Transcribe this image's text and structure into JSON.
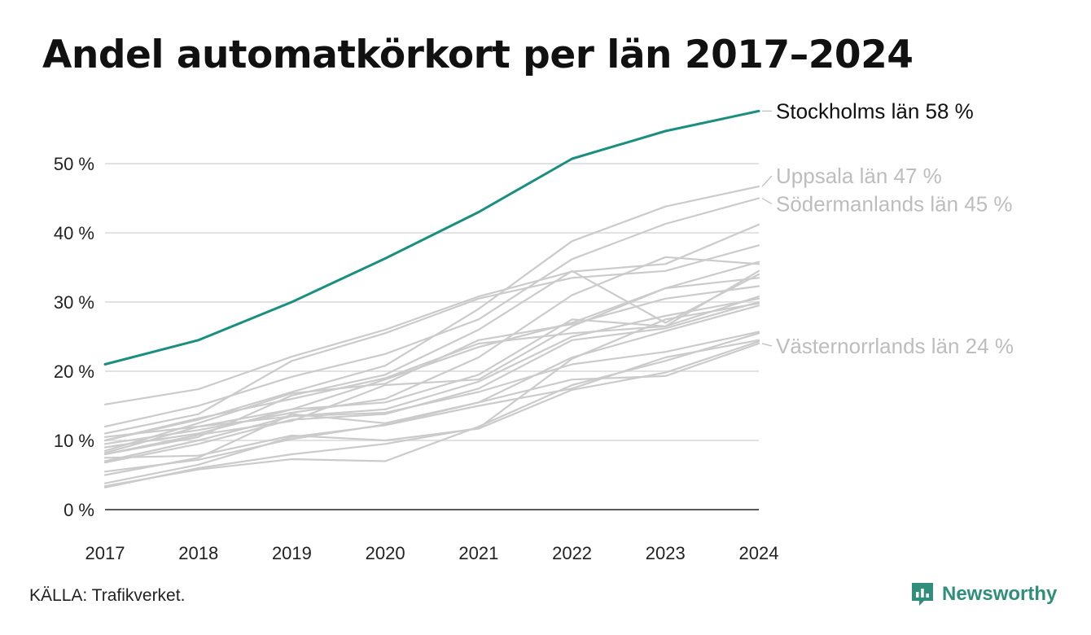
{
  "title": "Andel automatkörkort per län 2017–2024",
  "source": "KÄLLA: Trafikverket.",
  "brand": {
    "name": "Newsworthy",
    "icon": "newsworthy-logo-icon",
    "color": "#2f8f7b"
  },
  "colors": {
    "highlight": "#1a8f80",
    "other": "#cbcbcb",
    "label_gray": "#bdbdbd",
    "grid": "#e2e2e2"
  },
  "chart_data": {
    "type": "line",
    "title": "Andel automatkörkort per län 2017–2024",
    "xlabel": "",
    "ylabel": "",
    "x": [
      "2017",
      "2018",
      "2019",
      "2020",
      "2021",
      "2022",
      "2023",
      "2024"
    ],
    "ylim": [
      0,
      58
    ],
    "yticks": [
      {
        "value": 0,
        "label": "0 %"
      },
      {
        "value": 10,
        "label": "10 %"
      },
      {
        "value": 20,
        "label": "20 %"
      },
      {
        "value": 30,
        "label": "30 %"
      },
      {
        "value": 40,
        "label": "40 %"
      },
      {
        "value": 50,
        "label": "50 %"
      }
    ],
    "grid": true,
    "legend": "none",
    "series": [
      {
        "name": "Stockholms län",
        "label": "Stockholms län 58 %",
        "highlight": true,
        "values": [
          21.0,
          24.5,
          30.0,
          36.3,
          43.0,
          50.7,
          54.7,
          57.6
        ]
      },
      {
        "name": "Uppsala län",
        "label": "Uppsala län 47 %",
        "values": [
          10.0,
          13.0,
          17.0,
          20.8,
          29.0,
          38.8,
          43.8,
          46.7
        ]
      },
      {
        "name": "Södermanlands län",
        "label": "Södermanlands län 45 %",
        "values": [
          12.0,
          15.0,
          19.2,
          22.5,
          27.5,
          36.2,
          41.3,
          45.0
        ]
      },
      {
        "name": "Västernorrlands län",
        "label": "Västernorrlands län 24 %",
        "values": [
          5.5,
          7.2,
          10.2,
          12.3,
          15.5,
          18.8,
          19.3,
          24.0
        ]
      },
      {
        "values": [
          15.2,
          17.4,
          22.1,
          26.0,
          30.8,
          34.4,
          35.5,
          41.2
        ]
      },
      {
        "values": [
          11.0,
          13.8,
          21.5,
          25.5,
          30.5,
          33.5,
          34.5,
          38.2
        ]
      },
      {
        "values": [
          9.5,
          11.5,
          14.0,
          16.0,
          22.0,
          31.0,
          36.5,
          35.5
        ]
      },
      {
        "values": [
          8.0,
          10.5,
          16.5,
          19.5,
          26.0,
          34.5,
          27.0,
          34.0
        ]
      },
      {
        "values": [
          10.5,
          12.0,
          14.5,
          18.8,
          23.5,
          27.0,
          32.0,
          33.5
        ]
      },
      {
        "values": [
          8.5,
          12.5,
          16.8,
          18.2,
          24.5,
          26.8,
          30.5,
          32.3
        ]
      },
      {
        "values": [
          9.0,
          11.0,
          14.5,
          15.5,
          19.5,
          27.5,
          26.5,
          30.8
        ]
      },
      {
        "values": [
          7.0,
          10.0,
          13.5,
          14.5,
          18.5,
          25.0,
          28.0,
          30.5
        ]
      },
      {
        "values": [
          6.8,
          9.5,
          13.0,
          13.8,
          17.5,
          24.5,
          26.2,
          30.0
        ]
      },
      {
        "values": [
          5.0,
          7.5,
          13.8,
          12.5,
          15.5,
          22.0,
          25.8,
          29.5
        ]
      },
      {
        "values": [
          8.2,
          12.0,
          13.5,
          14.0,
          17.0,
          21.0,
          22.8,
          25.7
        ]
      },
      {
        "values": [
          3.8,
          6.5,
          10.5,
          12.2,
          15.0,
          17.5,
          22.0,
          24.5
        ]
      },
      {
        "values": [
          3.4,
          5.8,
          7.3,
          7.0,
          12.0,
          18.0,
          21.5,
          25.5
        ]
      },
      {
        "values": [
          3.2,
          6.0,
          8.0,
          9.5,
          11.8,
          21.8,
          27.5,
          29.8
        ]
      },
      {
        "values": [
          7.5,
          7.8,
          10.7,
          10.0,
          11.7,
          17.3,
          19.8,
          24.3
        ]
      },
      {
        "values": [
          10.0,
          13.2,
          16.0,
          19.0,
          24.0,
          25.5,
          26.5,
          34.5
        ]
      },
      {
        "values": [
          8.0,
          10.8,
          12.8,
          18.0,
          18.8,
          26.5,
          32.0,
          35.8
        ]
      }
    ]
  }
}
